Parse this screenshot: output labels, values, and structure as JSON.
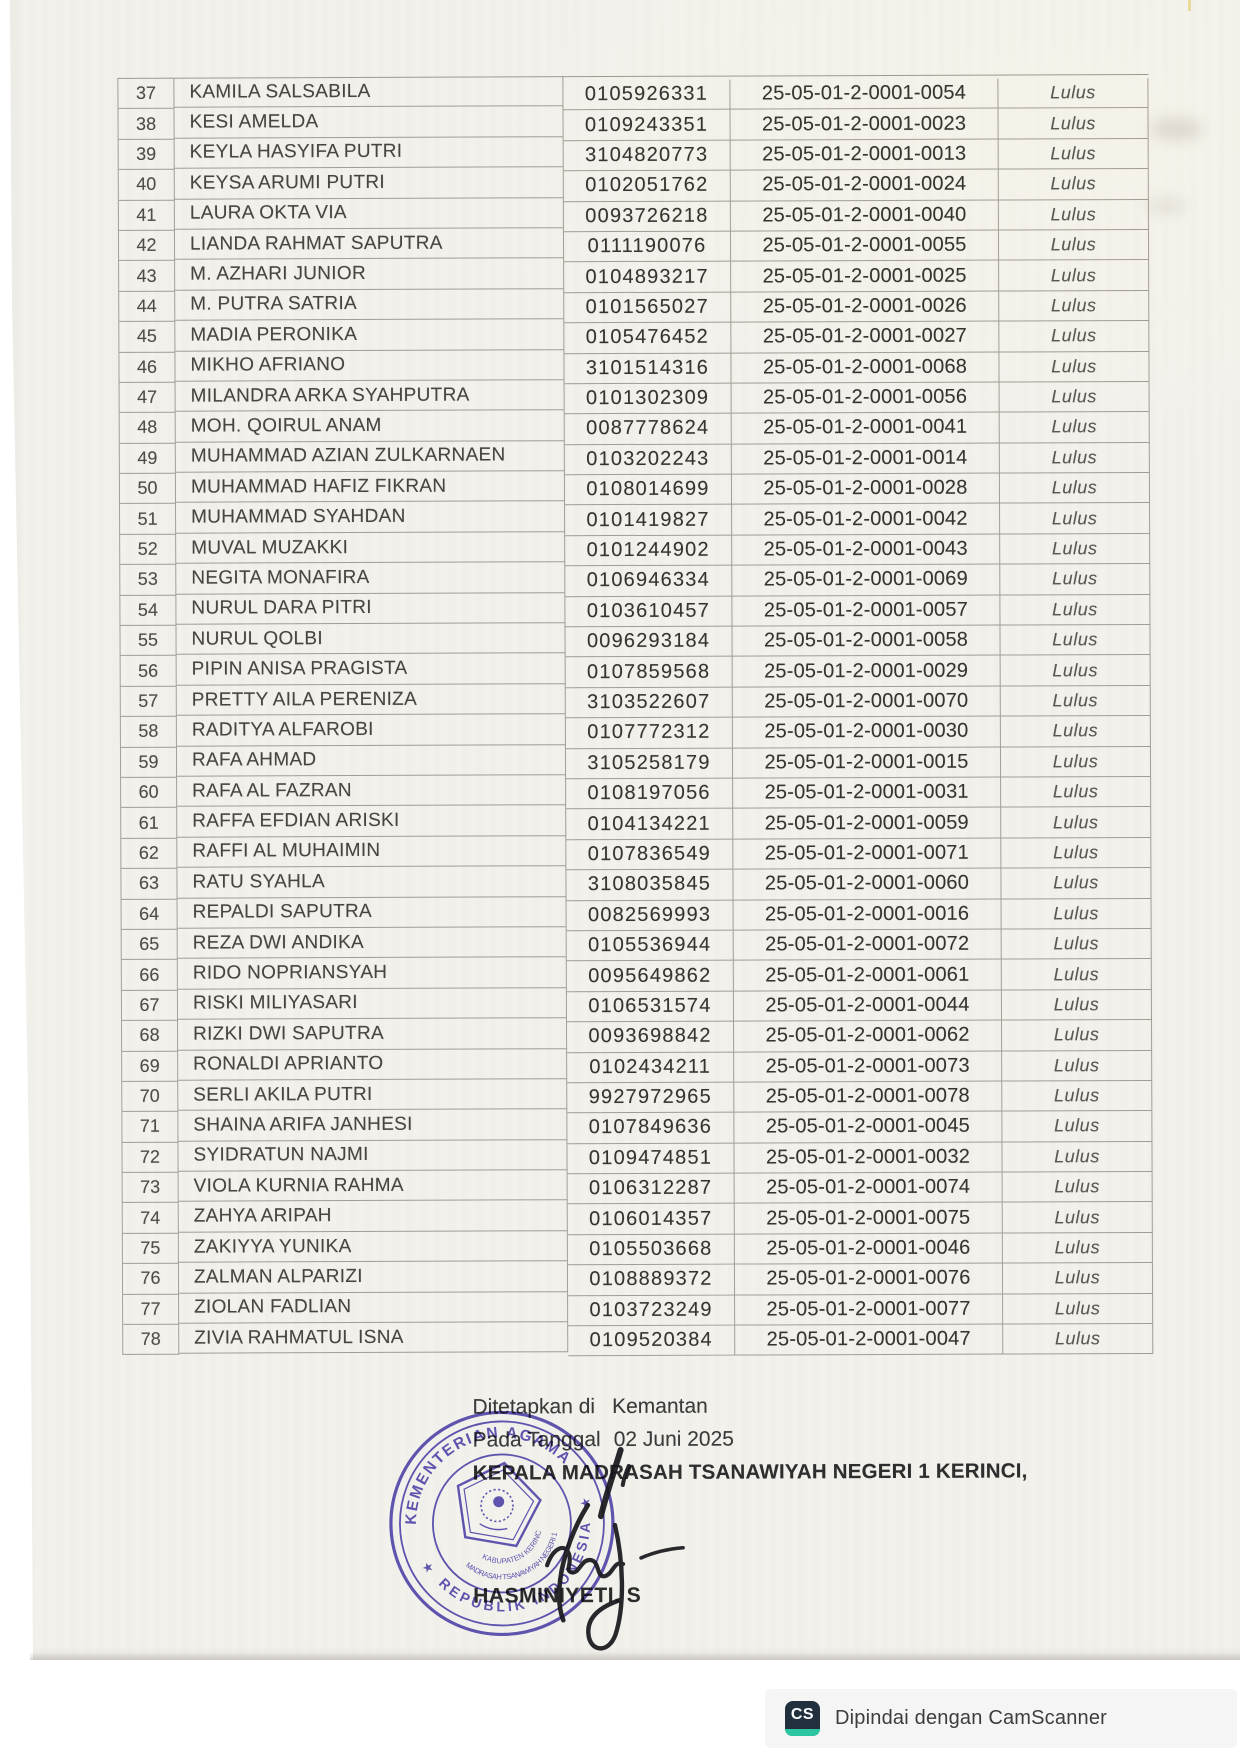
{
  "page": {
    "background": "#ffffff",
    "paper_color": "#f2f1ec"
  },
  "table": {
    "columns": [
      "no",
      "name",
      "nisn",
      "certificate_no",
      "status"
    ],
    "rows": [
      {
        "no": "37",
        "name": "KAMILA SALSABILA",
        "nisn": "0105926331",
        "cert": "25-05-01-2-0001-0054",
        "status": "Lulus"
      },
      {
        "no": "38",
        "name": "KESI AMELDA",
        "nisn": "0109243351",
        "cert": "25-05-01-2-0001-0023",
        "status": "Lulus"
      },
      {
        "no": "39",
        "name": "KEYLA HASYIFA PUTRI",
        "nisn": "3104820773",
        "cert": "25-05-01-2-0001-0013",
        "status": "Lulus"
      },
      {
        "no": "40",
        "name": "KEYSA ARUMI PUTRI",
        "nisn": "0102051762",
        "cert": "25-05-01-2-0001-0024",
        "status": "Lulus"
      },
      {
        "no": "41",
        "name": "LAURA OKTA VIA",
        "nisn": "0093726218",
        "cert": "25-05-01-2-0001-0040",
        "status": "Lulus"
      },
      {
        "no": "42",
        "name": "LIANDA RAHMAT SAPUTRA",
        "nisn": "0111190076",
        "cert": "25-05-01-2-0001-0055",
        "status": "Lulus"
      },
      {
        "no": "43",
        "name": "M. AZHARI JUNIOR",
        "nisn": "0104893217",
        "cert": "25-05-01-2-0001-0025",
        "status": "Lulus"
      },
      {
        "no": "44",
        "name": "M. PUTRA SATRIA",
        "nisn": "0101565027",
        "cert": "25-05-01-2-0001-0026",
        "status": "Lulus"
      },
      {
        "no": "45",
        "name": "MADIA PERONIKA",
        "nisn": "0105476452",
        "cert": "25-05-01-2-0001-0027",
        "status": "Lulus"
      },
      {
        "no": "46",
        "name": "MIKHO AFRIANO",
        "nisn": "3101514316",
        "cert": "25-05-01-2-0001-0068",
        "status": "Lulus"
      },
      {
        "no": "47",
        "name": "MILANDRA ARKA SYAHPUTRA",
        "nisn": "0101302309",
        "cert": "25-05-01-2-0001-0056",
        "status": "Lulus"
      },
      {
        "no": "48",
        "name": "MOH. QOIRUL ANAM",
        "nisn": "0087778624",
        "cert": "25-05-01-2-0001-0041",
        "status": "Lulus"
      },
      {
        "no": "49",
        "name": "MUHAMMAD AZIAN ZULKARNAEN",
        "nisn": "0103202243",
        "cert": "25-05-01-2-0001-0014",
        "status": "Lulus"
      },
      {
        "no": "50",
        "name": "MUHAMMAD HAFIZ FIKRAN",
        "nisn": "0108014699",
        "cert": "25-05-01-2-0001-0028",
        "status": "Lulus"
      },
      {
        "no": "51",
        "name": "MUHAMMAD SYAHDAN",
        "nisn": "0101419827",
        "cert": "25-05-01-2-0001-0042",
        "status": "Lulus"
      },
      {
        "no": "52",
        "name": "MUVAL MUZAKKI",
        "nisn": "0101244902",
        "cert": "25-05-01-2-0001-0043",
        "status": "Lulus"
      },
      {
        "no": "53",
        "name": "NEGITA MONAFIRA",
        "nisn": "0106946334",
        "cert": "25-05-01-2-0001-0069",
        "status": "Lulus"
      },
      {
        "no": "54",
        "name": "NURUL DARA PITRI",
        "nisn": "0103610457",
        "cert": "25-05-01-2-0001-0057",
        "status": "Lulus"
      },
      {
        "no": "55",
        "name": "NURUL QOLBI",
        "nisn": "0096293184",
        "cert": "25-05-01-2-0001-0058",
        "status": "Lulus"
      },
      {
        "no": "56",
        "name": "PIPIN ANISA PRAGISTA",
        "nisn": "0107859568",
        "cert": "25-05-01-2-0001-0029",
        "status": "Lulus"
      },
      {
        "no": "57",
        "name": "PRETTY AILA PERENIZA",
        "nisn": "3103522607",
        "cert": "25-05-01-2-0001-0070",
        "status": "Lulus"
      },
      {
        "no": "58",
        "name": "RADITYA ALFAROBI",
        "nisn": "0107772312",
        "cert": "25-05-01-2-0001-0030",
        "status": "Lulus"
      },
      {
        "no": "59",
        "name": "RAFA AHMAD",
        "nisn": "3105258179",
        "cert": "25-05-01-2-0001-0015",
        "status": "Lulus"
      },
      {
        "no": "60",
        "name": "RAFA AL FAZRAN",
        "nisn": "0108197056",
        "cert": "25-05-01-2-0001-0031",
        "status": "Lulus"
      },
      {
        "no": "61",
        "name": "RAFFA EFDIAN ARISKI",
        "nisn": "0104134221",
        "cert": "25-05-01-2-0001-0059",
        "status": "Lulus"
      },
      {
        "no": "62",
        "name": "RAFFI AL MUHAIMIN",
        "nisn": "0107836549",
        "cert": "25-05-01-2-0001-0071",
        "status": "Lulus"
      },
      {
        "no": "63",
        "name": "RATU SYAHLA",
        "nisn": "3108035845",
        "cert": "25-05-01-2-0001-0060",
        "status": "Lulus"
      },
      {
        "no": "64",
        "name": "REPALDI SAPUTRA",
        "nisn": "0082569993",
        "cert": "25-05-01-2-0001-0016",
        "status": "Lulus"
      },
      {
        "no": "65",
        "name": "REZA DWI ANDIKA",
        "nisn": "0105536944",
        "cert": "25-05-01-2-0001-0072",
        "status": "Lulus"
      },
      {
        "no": "66",
        "name": "RIDO NOPRIANSYAH",
        "nisn": "0095649862",
        "cert": "25-05-01-2-0001-0061",
        "status": "Lulus"
      },
      {
        "no": "67",
        "name": "RISKI MILIYASARI",
        "nisn": "0106531574",
        "cert": "25-05-01-2-0001-0044",
        "status": "Lulus"
      },
      {
        "no": "68",
        "name": "RIZKI DWI SAPUTRA",
        "nisn": "0093698842",
        "cert": "25-05-01-2-0001-0062",
        "status": "Lulus"
      },
      {
        "no": "69",
        "name": "RONALDI APRIANTO",
        "nisn": "0102434211",
        "cert": "25-05-01-2-0001-0073",
        "status": "Lulus"
      },
      {
        "no": "70",
        "name": "SERLI AKILA PUTRI",
        "nisn": "9927972965",
        "cert": "25-05-01-2-0001-0078",
        "status": "Lulus"
      },
      {
        "no": "71",
        "name": "SHAINA ARIFA JANHESI",
        "nisn": "0107849636",
        "cert": "25-05-01-2-0001-0045",
        "status": "Lulus"
      },
      {
        "no": "72",
        "name": "SYIDRATUN NAJMI",
        "nisn": "0109474851",
        "cert": "25-05-01-2-0001-0032",
        "status": "Lulus"
      },
      {
        "no": "73",
        "name": "VIOLA KURNIA RAHMA",
        "nisn": "0106312287",
        "cert": "25-05-01-2-0001-0074",
        "status": "Lulus"
      },
      {
        "no": "74",
        "name": "ZAHYA ARIPAH",
        "nisn": "0106014357",
        "cert": "25-05-01-2-0001-0075",
        "status": "Lulus"
      },
      {
        "no": "75",
        "name": "ZAKIYYA YUNIKA",
        "nisn": "0105503668",
        "cert": "25-05-01-2-0001-0046",
        "status": "Lulus"
      },
      {
        "no": "76",
        "name": "ZALMAN ALPARIZI",
        "nisn": "0108889372",
        "cert": "25-05-01-2-0001-0076",
        "status": "Lulus"
      },
      {
        "no": "77",
        "name": "ZIOLAN FADLIAN",
        "nisn": "0103723249",
        "cert": "25-05-01-2-0001-0077",
        "status": "Lulus"
      },
      {
        "no": "78",
        "name": "ZIVIA RAHMATUL ISNA",
        "nisn": "0109520384",
        "cert": "25-05-01-2-0001-0047",
        "status": "Lulus"
      }
    ]
  },
  "closing": {
    "place_label": "Ditetapkan di",
    "place_value": "Kemantan",
    "date_label": "Pada Tanggal",
    "date_value": "02 Juni 2025",
    "title": "KEPALA MADRASAH TSANAWIYAH NEGERI 1 KERINCI,",
    "signer": "HASMINIYETI. S"
  },
  "stamp": {
    "top_arc": "KEMENTERIAN AGAMA",
    "bottom_arc": "REPUBLIK INDONESIA",
    "inner_arc1": "MADRASAH TSANAWIYAH NEGERI 1",
    "inner_arc2": "KABUPATEN KERINCI",
    "color": "#463aa3"
  },
  "footer": {
    "icon_text": "CS",
    "text": "Dipindai dengan CamScanner",
    "icon_bg": "#22303e",
    "icon_accent": "#2cc5a2"
  }
}
